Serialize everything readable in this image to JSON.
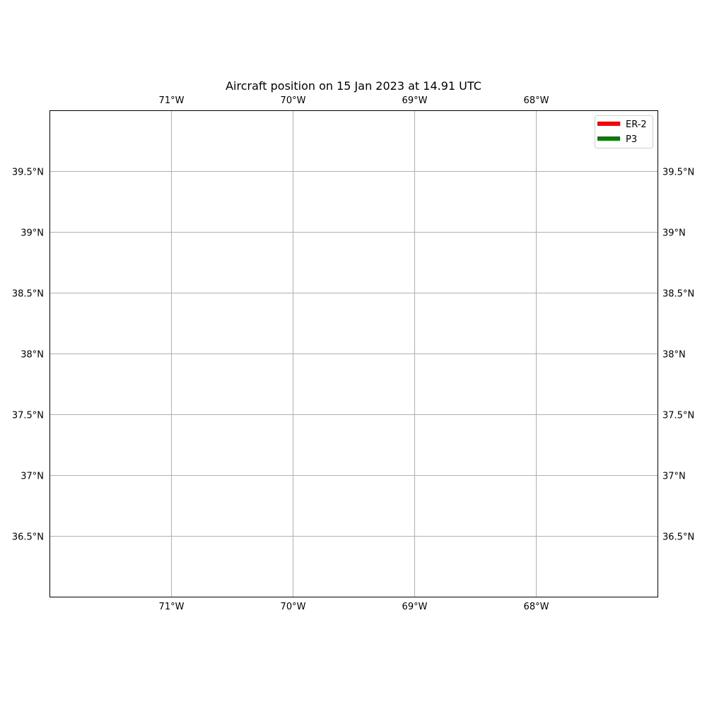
{
  "title": "Aircraft position on 15 Jan 2023 at 14.91 UTC",
  "colors": {
    "gridline": "#b0b0b0",
    "frame": "#000000",
    "legend_border": "#d0d0d0"
  },
  "chart_data": {
    "type": "map",
    "projection": "PlateCarree",
    "lon_range": [
      -72,
      -67
    ],
    "lat_range": [
      36,
      40
    ],
    "lon_ticks": [
      -71,
      -70,
      -69,
      -68
    ],
    "lon_tick_labels": [
      "71°W",
      "70°W",
      "69°W",
      "68°W"
    ],
    "lat_ticks": [
      39.5,
      39,
      38.5,
      38,
      37.5,
      37,
      36.5
    ],
    "lat_tick_labels": [
      "39.5°N",
      "39°N",
      "38.5°N",
      "38°N",
      "37.5°N",
      "37°N",
      "36.5°N"
    ],
    "grid": true,
    "legend_position": "top-right",
    "series": [
      {
        "name": "ER-2",
        "color": "#ff0000",
        "points": []
      },
      {
        "name": "P3",
        "color": "#008000",
        "points": []
      }
    ]
  }
}
